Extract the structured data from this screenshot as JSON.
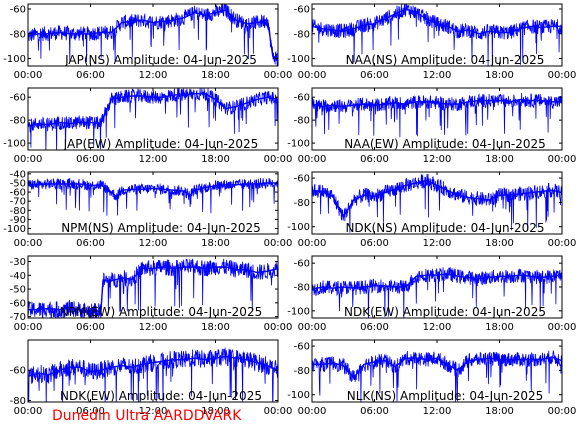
{
  "footer_text": "Dunedin Ultra AARDDVARK",
  "colors": {
    "trace": "#0000ff",
    "axes": "#000000",
    "footer": "#ff0000",
    "background": "#ffffff"
  },
  "chart_data": [
    {
      "type": "line",
      "title": "JAP(NS) Amplitude: 04-Jun-2025",
      "xticks": [
        "00:00",
        "06:00",
        "12:00",
        "18:00",
        "00:00"
      ],
      "xlim": [
        0,
        24
      ],
      "yticks": [
        -100,
        -80,
        -60
      ],
      "ylim": [
        -106,
        -56
      ],
      "series": [
        {
          "x": [
            0,
            1,
            2,
            3,
            4,
            5,
            6,
            7,
            8,
            9,
            10,
            11,
            12,
            13,
            14,
            15,
            16,
            17,
            18,
            19,
            20,
            21,
            22,
            23,
            23.5,
            24
          ],
          "y": [
            -82,
            -80,
            -80,
            -79,
            -80,
            -80,
            -80,
            -79,
            -79,
            -71,
            -70,
            -69,
            -71,
            -70,
            -69,
            -67,
            -63,
            -65,
            -63,
            -61,
            -69,
            -72,
            -71,
            -69,
            -98,
            -100
          ]
        }
      ]
    },
    {
      "type": "line",
      "title": "NAA(NS) Amplitude: 04-Jun-2025",
      "xticks": [
        "00:00",
        "06:00",
        "12:00",
        "18:00",
        "00:00"
      ],
      "xlim": [
        0,
        24
      ],
      "yticks": [
        -100,
        -80,
        -60
      ],
      "ylim": [
        -106,
        -56
      ],
      "series": [
        {
          "x": [
            0,
            1,
            2,
            3,
            4,
            5,
            6,
            7,
            8,
            9,
            10,
            11,
            12,
            13,
            14,
            15,
            16,
            17,
            18,
            19,
            20,
            21,
            22,
            23,
            24
          ],
          "y": [
            -74,
            -76,
            -77,
            -78,
            -76,
            -73,
            -72,
            -68,
            -64,
            -60,
            -63,
            -68,
            -72,
            -74,
            -78,
            -77,
            -80,
            -78,
            -79,
            -79,
            -76,
            -74,
            -75,
            -74,
            -74
          ]
        }
      ]
    },
    {
      "type": "line",
      "title": "JAP(EW) Amplitude: 04-Jun-2025",
      "xticks": [
        "00:00",
        "06:00",
        "12:00",
        "18:00",
        "00:00"
      ],
      "xlim": [
        0,
        24
      ],
      "yticks": [
        -100,
        -80,
        -60
      ],
      "ylim": [
        -106,
        -52
      ],
      "series": [
        {
          "x": [
            0,
            1,
            2,
            3,
            4,
            5,
            6,
            7,
            8,
            9,
            10,
            11,
            12,
            13,
            14,
            15,
            16,
            17,
            18,
            19,
            20,
            21,
            22,
            23,
            24
          ],
          "y": [
            -85,
            -83,
            -84,
            -82,
            -83,
            -82,
            -82,
            -83,
            -62,
            -60,
            -59,
            -59,
            -60,
            -60,
            -58,
            -58,
            -57,
            -57,
            -62,
            -70,
            -68,
            -65,
            -62,
            -60,
            -62
          ]
        }
      ]
    },
    {
      "type": "line",
      "title": "NAA(EW) Amplitude: 04-Jun-2025",
      "xticks": [
        "00:00",
        "06:00",
        "12:00",
        "18:00",
        "00:00"
      ],
      "xlim": [
        0,
        24
      ],
      "yticks": [
        -100,
        -80,
        -60
      ],
      "ylim": [
        -106,
        -52
      ],
      "series": [
        {
          "x": [
            0,
            1,
            2,
            3,
            4,
            5,
            6,
            7,
            8,
            9,
            10,
            11,
            12,
            13,
            14,
            15,
            16,
            17,
            18,
            19,
            20,
            21,
            22,
            23,
            24
          ],
          "y": [
            -66,
            -68,
            -67,
            -68,
            -67,
            -66,
            -67,
            -66,
            -65,
            -66,
            -64,
            -64,
            -65,
            -66,
            -66,
            -64,
            -63,
            -63,
            -63,
            -64,
            -62,
            -63,
            -63,
            -64,
            -64
          ]
        }
      ]
    },
    {
      "type": "line",
      "title": "NPM(NS) Amplitude: 04-Jun-2025",
      "xticks": [
        "00:00",
        "06:00",
        "12:00",
        "18:00",
        "00:00"
      ],
      "xlim": [
        0,
        24
      ],
      "yticks": [
        -100,
        -90,
        -80,
        -70,
        -60,
        -50,
        -40
      ],
      "ylim": [
        -106,
        -38
      ],
      "series": [
        {
          "x": [
            0,
            1,
            2,
            3,
            4,
            5,
            6,
            7,
            7.5,
            8,
            8.5,
            9,
            10,
            11,
            12,
            13,
            14,
            15,
            15.5,
            16,
            17,
            18,
            19,
            20,
            21,
            22,
            23,
            24
          ],
          "y": [
            -52,
            -52,
            -51,
            -51,
            -51,
            -51,
            -53,
            -52,
            -56,
            -60,
            -65,
            -58,
            -57,
            -57,
            -56,
            -57,
            -58,
            -59,
            -64,
            -58,
            -55,
            -53,
            -52,
            -52,
            -51,
            -51,
            -50,
            -50
          ]
        }
      ]
    },
    {
      "type": "line",
      "title": "NDK(NS) Amplitude: 04-Jun-2025",
      "xticks": [
        "00:00",
        "06:00",
        "12:00",
        "18:00",
        "00:00"
      ],
      "xlim": [
        0,
        24
      ],
      "yticks": [
        -100,
        -80,
        -60
      ],
      "ylim": [
        -106,
        -55
      ],
      "series": [
        {
          "x": [
            0,
            1,
            2,
            3,
            4,
            5,
            6,
            7,
            8,
            9,
            10,
            11,
            12,
            13,
            14,
            15,
            16,
            17,
            18,
            19,
            20,
            21,
            22,
            23,
            24
          ],
          "y": [
            -70,
            -71,
            -75,
            -92,
            -78,
            -74,
            -75,
            -72,
            -69,
            -66,
            -64,
            -62,
            -66,
            -70,
            -74,
            -76,
            -77,
            -78,
            -74,
            -74,
            -73,
            -72,
            -71,
            -70,
            -72
          ]
        }
      ]
    },
    {
      "type": "line",
      "title": "NPM(EW) Amplitude: 04-Jun-2025",
      "xticks": [
        "00:00",
        "06:00",
        "12:00",
        "18:00",
        "00:00"
      ],
      "xlim": [
        0,
        24
      ],
      "yticks": [
        -70,
        -60,
        -50,
        -40,
        -30
      ],
      "ylim": [
        -71,
        -26
      ],
      "series": [
        {
          "x": [
            0,
            1,
            2,
            3,
            4,
            5,
            6,
            7,
            7.2,
            8,
            9,
            10,
            11,
            12,
            13,
            14,
            15,
            16,
            17,
            18,
            19,
            20,
            21,
            22,
            23,
            24
          ],
          "y": [
            -65,
            -65,
            -64,
            -65,
            -64,
            -65,
            -66,
            -66,
            -44,
            -44,
            -42,
            -43,
            -35,
            -35,
            -34,
            -35,
            -34,
            -34,
            -35,
            -34,
            -34,
            -36,
            -36,
            -38,
            -37,
            -35
          ]
        }
      ]
    },
    {
      "type": "line",
      "title": "NDK(EW) Amplitude: 04-Jun-2025",
      "xticks": [
        "00:00",
        "06:00",
        "12:00",
        "18:00",
        "00:00"
      ],
      "xlim": [
        0,
        24
      ],
      "yticks": [
        -100,
        -80,
        -60
      ],
      "ylim": [
        -106,
        -54
      ],
      "series": [
        {
          "x": [
            0,
            1,
            2,
            3,
            4,
            5,
            6,
            7,
            8,
            9,
            10,
            11,
            12,
            13,
            14,
            15,
            16,
            17,
            18,
            19,
            20,
            21,
            22,
            23,
            24
          ],
          "y": [
            -82,
            -80,
            -81,
            -80,
            -81,
            -80,
            -79,
            -79,
            -80,
            -80,
            -71,
            -70,
            -70,
            -69,
            -71,
            -72,
            -73,
            -72,
            -71,
            -71,
            -70,
            -71,
            -72,
            -71,
            -70
          ]
        }
      ]
    },
    {
      "type": "line",
      "title": "NDK(EW) Amplitude: 04-Jun-2025",
      "xticks": [
        "00:00",
        "06:00",
        "12:00",
        "18:00",
        "00:00"
      ],
      "xlim": [
        0,
        24
      ],
      "yticks": [
        -80,
        -60
      ],
      "ylim": [
        -81,
        -40
      ],
      "series": [
        {
          "x": [
            0,
            1,
            2,
            3,
            4,
            5,
            6,
            7,
            8,
            9,
            10,
            11,
            12,
            13,
            14,
            15,
            16,
            17,
            18,
            19,
            20,
            21,
            22,
            23,
            24
          ],
          "y": [
            -64,
            -62,
            -63,
            -60,
            -58,
            -58,
            -61,
            -60,
            -58,
            -57,
            -58,
            -56,
            -55,
            -54,
            -53,
            -53,
            -52,
            -53,
            -52,
            -51,
            -52,
            -53,
            -55,
            -57,
            -60
          ]
        }
      ]
    },
    {
      "type": "line",
      "title": "NLK(NS) Amplitude: 04-Jun-2025",
      "xticks": [
        "00:00",
        "06:00",
        "12:00",
        "18:00",
        "00:00"
      ],
      "xlim": [
        0,
        24
      ],
      "yticks": [
        -100,
        -80,
        -60
      ],
      "ylim": [
        -106,
        -55
      ],
      "series": [
        {
          "x": [
            0,
            1,
            2,
            3,
            4,
            5,
            6,
            7,
            8,
            9,
            10,
            11,
            12,
            13,
            14,
            15,
            16,
            17,
            18,
            19,
            20,
            21,
            22,
            23,
            24
          ],
          "y": [
            -75,
            -75,
            -74,
            -76,
            -86,
            -75,
            -73,
            -72,
            -77,
            -70,
            -70,
            -71,
            -70,
            -75,
            -80,
            -72,
            -71,
            -70,
            -71,
            -71,
            -71,
            -71,
            -71,
            -69,
            -72
          ]
        }
      ]
    }
  ]
}
